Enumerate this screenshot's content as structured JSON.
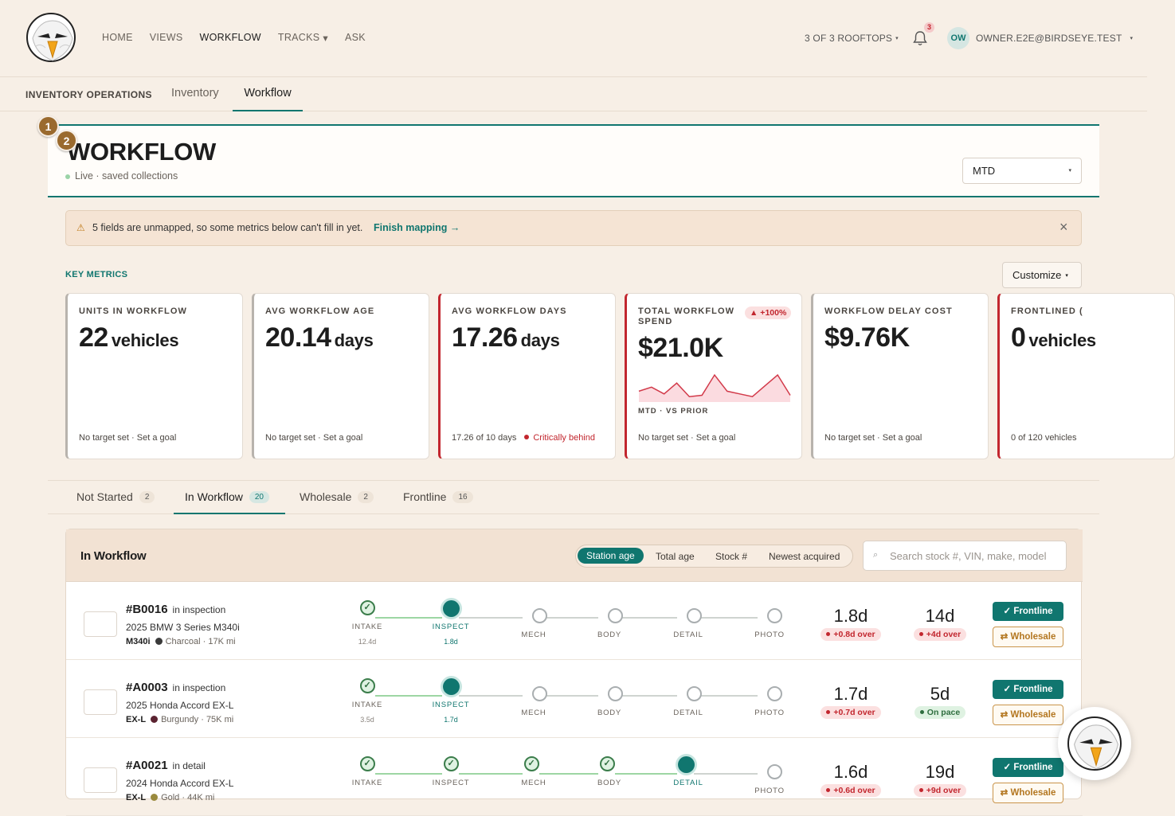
{
  "nav": {
    "links": [
      "HOME",
      "VIEWS",
      "WORKFLOW",
      "TRACKS",
      "ASK"
    ],
    "active": "WORKFLOW",
    "rooftops": "3 OF 3 ROOFTOPS",
    "notifications": "3",
    "avatar_initials": "OW",
    "user_email": "OWNER.E2E@BIRDSEYE.TEST"
  },
  "subnav": {
    "section": "INVENTORY OPERATIONS",
    "tabs": [
      "Inventory",
      "Workflow"
    ],
    "active": "Workflow"
  },
  "header": {
    "title": "WORKFLOW",
    "subtitle": "Live · saved collections",
    "period": "MTD",
    "markers": [
      "1",
      "2"
    ]
  },
  "alert": {
    "message": "5 fields are unmapped, so some metrics below can't fill in yet.",
    "link": "Finish mapping →"
  },
  "metrics": {
    "section_label": "KEY METRICS",
    "customize_label": "Customize",
    "cards": [
      {
        "label": "UNITS IN WORKFLOW",
        "value": "22",
        "unit": "vehicles",
        "foot": "No target set · Set a goal"
      },
      {
        "label": "AVG WORKFLOW AGE",
        "value": "20.14",
        "unit": "days",
        "foot": "No target set · Set a goal"
      },
      {
        "label": "AVG WORKFLOW DAYS",
        "value": "17.26",
        "unit": "days",
        "foot": "17.26 of 10 days",
        "status": "Critically behind"
      },
      {
        "label": "TOTAL WORKFLOW SPEND",
        "value": "$21.0K",
        "unit": "",
        "change": "▲ +100%",
        "spark_label": "MTD · VS PRIOR",
        "foot": "No target set · Set a goal"
      },
      {
        "label": "WORKFLOW DELAY COST",
        "value": "$9.76K",
        "unit": "",
        "foot": "No target set · Set a goal"
      },
      {
        "label": "FRONTLINED (",
        "value": "0",
        "unit": "vehicles",
        "foot": "0 of 120 vehicles"
      }
    ]
  },
  "spark_data": [
    8,
    11,
    6,
    14,
    4,
    5,
    20,
    8,
    6,
    4,
    12,
    20,
    5
  ],
  "status_tabs": [
    {
      "label": "Not Started",
      "count": "2"
    },
    {
      "label": "In Workflow",
      "count": "20"
    },
    {
      "label": "Wholesale",
      "count": "2"
    },
    {
      "label": "Frontline",
      "count": "16"
    }
  ],
  "list": {
    "title": "In Workflow",
    "sort_options": [
      "Station age",
      "Total age",
      "Stock #",
      "Newest acquired"
    ],
    "search_placeholder": "Search stock #, VIN, make, model",
    "stages": [
      "INTAKE",
      "INSPECT",
      "MECH",
      "BODY",
      "DETAIL",
      "PHOTO"
    ],
    "frontline_label": "✓ Frontline",
    "wholesale_label": "⇄ Wholesale",
    "rows": [
      {
        "stock": "#B0016",
        "stage_text": "in",
        "stage": "inspection",
        "car": "2025 BMW 3 Series M340i",
        "trim": "M340i",
        "color": "Charcoal",
        "color_hex": "#3a3a3a",
        "miles": "17K mi",
        "station": "1.8d",
        "station_badge": "+0.8d over",
        "station_status": "bad",
        "total": "14d",
        "total_badge": "+4d over",
        "total_status": "bad",
        "current": 1,
        "days": [
          "12.4d",
          "1.8d",
          "",
          "",
          "",
          ""
        ]
      },
      {
        "stock": "#A0003",
        "stage_text": "in",
        "stage": "inspection",
        "car": "2025 Honda Accord EX-L",
        "trim": "EX-L",
        "color": "Burgundy",
        "color_hex": "#5b2331",
        "miles": "75K mi",
        "station": "1.7d",
        "station_badge": "+0.7d over",
        "station_status": "bad",
        "total": "5d",
        "total_badge": "On pace",
        "total_status": "ok",
        "current": 1,
        "days": [
          "3.5d",
          "1.7d",
          "",
          "",
          "",
          ""
        ]
      },
      {
        "stock": "#A0021",
        "stage_text": "in",
        "stage": "detail",
        "car": "2024 Honda Accord EX-L",
        "trim": "EX-L",
        "color": "Gold",
        "color_hex": "#9a8a3e",
        "miles": "44K mi",
        "station": "1.6d",
        "station_badge": "+0.6d over",
        "station_status": "bad",
        "total": "19d",
        "total_badge": "+9d over",
        "total_status": "bad",
        "current": 4,
        "days": [
          "",
          "",
          "",
          "",
          "",
          ""
        ]
      }
    ]
  }
}
